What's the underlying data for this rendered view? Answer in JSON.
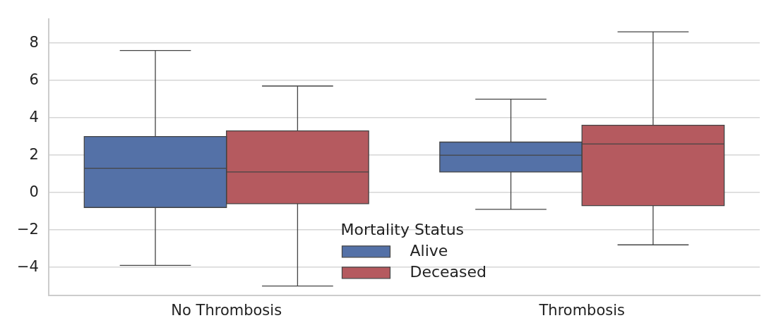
{
  "chart_data": {
    "type": "box",
    "categories": [
      "No Thrombosis",
      "Thrombosis"
    ],
    "series": [
      {
        "name": "Alive",
        "color": "#5471a7",
        "boxes": [
          {
            "low": -3.9,
            "q1": -0.8,
            "median": 1.3,
            "q3": 3.0,
            "high": 7.6
          },
          {
            "low": -0.9,
            "q1": 1.1,
            "median": 2.0,
            "q3": 2.7,
            "high": 5.0
          }
        ]
      },
      {
        "name": "Deceased",
        "color": "#b55a5f",
        "boxes": [
          {
            "low": -5.0,
            "q1": -0.6,
            "median": 1.1,
            "q3": 3.3,
            "high": 5.7
          },
          {
            "low": -2.8,
            "q1": -0.7,
            "median": 2.6,
            "q3": 3.6,
            "high": 8.6
          }
        ]
      }
    ],
    "legend_title": "Mortality Status",
    "legend": "bottom",
    "ylim": [
      -5.5,
      9.3
    ],
    "yticks": [
      -4,
      -2,
      0,
      2,
      4,
      6,
      8
    ],
    "grid": "y"
  }
}
